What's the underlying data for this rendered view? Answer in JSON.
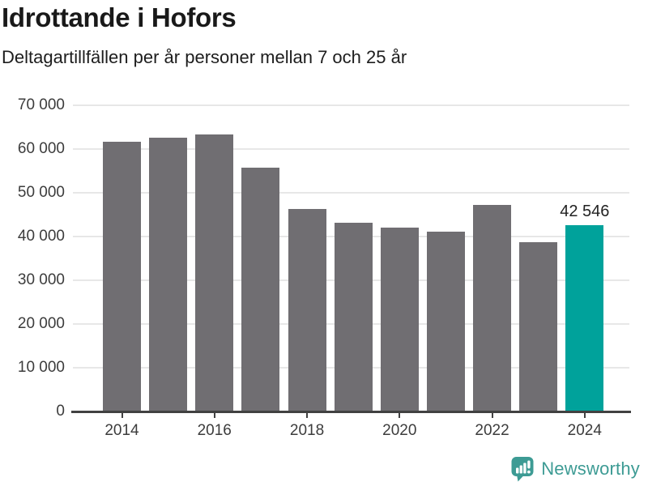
{
  "title": "Idrottande i Hofors",
  "subtitle": "Deltagartillfällen per år personer mellan 7 och 25 år",
  "chart_data": {
    "type": "bar",
    "title": "Idrottande i Hofors",
    "subtitle": "Deltagartillfällen per år personer mellan 7 och 25 år",
    "categories": [
      "2014",
      "2015",
      "2016",
      "2017",
      "2018",
      "2019",
      "2020",
      "2021",
      "2022",
      "2023",
      "2024"
    ],
    "values": [
      61700,
      62600,
      63400,
      55700,
      46300,
      43100,
      42000,
      41100,
      47200,
      38700,
      42546
    ],
    "highlight_index": 10,
    "annotation": {
      "category": "2024",
      "label": "42 546",
      "value": 42546
    },
    "y_tick_values": [
      0,
      10000,
      20000,
      30000,
      40000,
      50000,
      60000,
      70000
    ],
    "y_tick_labels": [
      "0",
      "10 000",
      "20 000",
      "30 000",
      "40 000",
      "50 000",
      "60 000",
      "70 000"
    ],
    "x_ticks": [
      {
        "index": 0,
        "label": "2014"
      },
      {
        "index": 2,
        "label": "2016"
      },
      {
        "index": 4,
        "label": "2018"
      },
      {
        "index": 6,
        "label": "2020"
      },
      {
        "index": 8,
        "label": "2022"
      },
      {
        "index": 10,
        "label": "2024"
      }
    ],
    "ylim": [
      0,
      70000
    ],
    "grid": "horizontal",
    "legend": "none",
    "colors": {
      "bar": "#706e72",
      "highlight": "#00a29b",
      "gridline": "#e7e7e7",
      "axis": "#414141",
      "tick_text": "#3c3c3c",
      "annotation_text": "#222222"
    }
  },
  "footer": {
    "brand": "Newsworthy",
    "logo_color": "#3d9b94",
    "logo_icon": "bar-chart-speech-bubble-icon"
  }
}
